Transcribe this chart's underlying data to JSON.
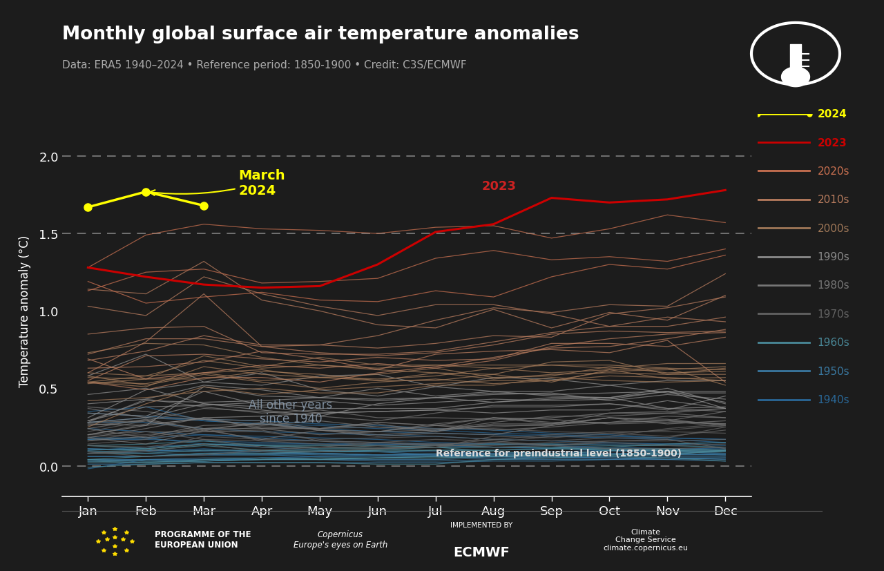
{
  "title": "Monthly global surface air temperature anomalies",
  "subtitle": "Data: ERA5 1940–2024 • Reference period: 1850-1900 • Credit: C3S/ECMWF",
  "ylabel": "Temperature anomaly (°C)",
  "bg_color": "#1c1c1c",
  "months": [
    1,
    2,
    3,
    4,
    5,
    6,
    7,
    8,
    9,
    10,
    11,
    12
  ],
  "month_labels": [
    "Jan",
    "Feb",
    "Mar",
    "Apr",
    "May",
    "Jun",
    "Jul",
    "Aug",
    "Sep",
    "Oct",
    "Nov",
    "Dec"
  ],
  "ylim": [
    -0.2,
    2.2
  ],
  "yticks": [
    0.0,
    0.5,
    1.0,
    1.5,
    2.0
  ],
  "line_2024": [
    1.67,
    1.77,
    1.68,
    null,
    null,
    null,
    null,
    null,
    null,
    null,
    null,
    null
  ],
  "line_2023": [
    1.28,
    1.22,
    1.17,
    1.15,
    1.16,
    1.3,
    1.51,
    1.56,
    1.73,
    1.7,
    1.72,
    1.78
  ],
  "decade_colors": {
    "2020s": "#c87050",
    "2010s": "#b87c5e",
    "2000s": "#a07858",
    "1990s": "#8a8a8a",
    "1980s": "#767676",
    "1970s": "#626262",
    "1960s": "#4a8898",
    "1950s": "#3a78a0",
    "1940s": "#2a6898"
  },
  "decade_line_data": {
    "2020s": [
      [
        1.13,
        1.25,
        1.27,
        1.18,
        1.19,
        1.21,
        1.34,
        1.39,
        1.33,
        1.35,
        1.32,
        1.4
      ],
      [
        1.19,
        1.05,
        1.09,
        1.12,
        1.07,
        1.06,
        1.13,
        1.09,
        1.22,
        1.3,
        1.27,
        1.36
      ],
      [
        1.28,
        1.49,
        1.56,
        1.53,
        1.52,
        1.5,
        1.54,
        1.55,
        1.47,
        1.53,
        1.62,
        1.57
      ]
    ],
    "2010s": [
      [
        0.6,
        0.8,
        1.11,
        0.77,
        0.78,
        0.84,
        0.94,
        1.02,
        0.99,
        1.04,
        1.03,
        1.24
      ],
      [
        1.14,
        1.11,
        1.32,
        1.07,
        1.0,
        0.91,
        0.89,
        1.01,
        0.89,
        0.99,
        0.94,
        1.1
      ],
      [
        1.03,
        0.97,
        1.22,
        1.11,
        1.03,
        0.97,
        1.04,
        1.04,
        0.98,
        0.9,
        0.96,
        0.93
      ],
      [
        0.85,
        0.89,
        0.9,
        0.73,
        0.72,
        0.72,
        0.74,
        0.8,
        0.86,
        0.9,
        0.9,
        0.96
      ],
      [
        0.72,
        0.82,
        0.82,
        0.77,
        0.73,
        0.71,
        0.73,
        0.78,
        0.85,
        0.87,
        0.86,
        0.87
      ],
      [
        0.69,
        0.56,
        0.6,
        0.65,
        0.63,
        0.66,
        0.63,
        0.68,
        0.77,
        0.82,
        0.85,
        0.86
      ],
      [
        0.68,
        0.74,
        0.84,
        0.78,
        0.78,
        0.76,
        0.79,
        0.84,
        0.83,
        0.98,
        1.02,
        1.09
      ],
      [
        0.55,
        0.71,
        0.72,
        0.69,
        0.67,
        0.7,
        0.68,
        0.69,
        0.79,
        0.79,
        0.77,
        0.83
      ],
      [
        0.54,
        0.49,
        0.57,
        0.57,
        0.54,
        0.6,
        0.64,
        0.7,
        0.76,
        0.77,
        0.82,
        0.88
      ],
      [
        0.63,
        0.64,
        0.67,
        0.74,
        0.69,
        0.62,
        0.72,
        0.74,
        0.75,
        0.73,
        0.81,
        0.54
      ]
    ],
    "2000s": [
      [
        0.25,
        0.4,
        0.51,
        0.46,
        0.49,
        0.51,
        0.53,
        0.55,
        0.55,
        0.61,
        0.62,
        0.64
      ],
      [
        0.42,
        0.44,
        0.48,
        0.5,
        0.47,
        0.47,
        0.52,
        0.52,
        0.57,
        0.55,
        0.54,
        0.55
      ],
      [
        0.58,
        0.52,
        0.59,
        0.54,
        0.5,
        0.54,
        0.56,
        0.53,
        0.55,
        0.58,
        0.57,
        0.55
      ],
      [
        0.54,
        0.58,
        0.6,
        0.62,
        0.57,
        0.59,
        0.63,
        0.57,
        0.58,
        0.64,
        0.6,
        0.61
      ],
      [
        0.73,
        0.79,
        0.78,
        0.7,
        0.65,
        0.62,
        0.6,
        0.56,
        0.59,
        0.6,
        0.59,
        0.63
      ],
      [
        0.54,
        0.51,
        0.64,
        0.59,
        0.57,
        0.55,
        0.55,
        0.59,
        0.54,
        0.62,
        0.63,
        0.62
      ],
      [
        0.57,
        0.56,
        0.56,
        0.61,
        0.59,
        0.55,
        0.6,
        0.59,
        0.67,
        0.68,
        0.59,
        0.59
      ],
      [
        0.54,
        0.53,
        0.6,
        0.55,
        0.57,
        0.56,
        0.58,
        0.63,
        0.6,
        0.62,
        0.56,
        0.57
      ],
      [
        0.6,
        0.58,
        0.68,
        0.63,
        0.65,
        0.63,
        0.65,
        0.65,
        0.65,
        0.63,
        0.66,
        0.66
      ],
      [
        0.53,
        0.56,
        0.71,
        0.64,
        0.7,
        0.65,
        0.65,
        0.63,
        0.65,
        0.65,
        0.63,
        0.52
      ]
    ],
    "1990s": [
      [
        0.29,
        0.38,
        0.39,
        0.41,
        0.37,
        0.37,
        0.37,
        0.41,
        0.43,
        0.44,
        0.5,
        0.4
      ],
      [
        0.4,
        0.43,
        0.52,
        0.49,
        0.44,
        0.5,
        0.45,
        0.48,
        0.45,
        0.44,
        0.37,
        0.38
      ],
      [
        0.46,
        0.5,
        0.4,
        0.36,
        0.32,
        0.4,
        0.44,
        0.41,
        0.44,
        0.44,
        0.48,
        0.48
      ],
      [
        0.29,
        0.42,
        0.41,
        0.42,
        0.44,
        0.43,
        0.44,
        0.46,
        0.47,
        0.42,
        0.46,
        0.43
      ],
      [
        0.34,
        0.32,
        0.48,
        0.39,
        0.42,
        0.39,
        0.41,
        0.43,
        0.42,
        0.43,
        0.48,
        0.41
      ],
      [
        0.31,
        0.49,
        0.54,
        0.52,
        0.58,
        0.59,
        0.51,
        0.57,
        0.56,
        0.52,
        0.55,
        0.55
      ],
      [
        0.58,
        0.72,
        0.54,
        0.6,
        0.49,
        0.45,
        0.51,
        0.48,
        0.48,
        0.52,
        0.47,
        0.47
      ],
      [
        0.28,
        0.31,
        0.4,
        0.38,
        0.34,
        0.35,
        0.36,
        0.34,
        0.36,
        0.36,
        0.42,
        0.37
      ],
      [
        0.2,
        0.26,
        0.31,
        0.32,
        0.34,
        0.35,
        0.36,
        0.38,
        0.38,
        0.4,
        0.36,
        0.45
      ],
      [
        0.27,
        0.26,
        0.51,
        0.45,
        0.44,
        0.42,
        0.44,
        0.47,
        0.46,
        0.47,
        0.48,
        0.37
      ]
    ],
    "1980s": [
      [
        0.24,
        0.3,
        0.23,
        0.28,
        0.23,
        0.22,
        0.26,
        0.23,
        0.25,
        0.28,
        0.29,
        0.35
      ],
      [
        0.38,
        0.35,
        0.3,
        0.26,
        0.29,
        0.25,
        0.23,
        0.28,
        0.32,
        0.32,
        0.34,
        0.31
      ],
      [
        0.16,
        0.19,
        0.26,
        0.27,
        0.23,
        0.22,
        0.27,
        0.31,
        0.28,
        0.28,
        0.32,
        0.31
      ],
      [
        0.26,
        0.29,
        0.37,
        0.35,
        0.32,
        0.29,
        0.34,
        0.39,
        0.39,
        0.4,
        0.37,
        0.35
      ],
      [
        0.28,
        0.43,
        0.38,
        0.34,
        0.36,
        0.31,
        0.31,
        0.3,
        0.31,
        0.34,
        0.35,
        0.37
      ],
      [
        0.18,
        0.14,
        0.23,
        0.17,
        0.23,
        0.2,
        0.22,
        0.27,
        0.27,
        0.31,
        0.3,
        0.26
      ],
      [
        0.28,
        0.29,
        0.24,
        0.27,
        0.23,
        0.19,
        0.21,
        0.2,
        0.26,
        0.31,
        0.27,
        0.29
      ],
      [
        0.24,
        0.18,
        0.24,
        0.24,
        0.2,
        0.22,
        0.23,
        0.26,
        0.26,
        0.31,
        0.29,
        0.27
      ],
      [
        0.37,
        0.31,
        0.3,
        0.29,
        0.24,
        0.27,
        0.22,
        0.31,
        0.27,
        0.34,
        0.34,
        0.37
      ],
      [
        0.18,
        0.24,
        0.31,
        0.24,
        0.24,
        0.28,
        0.26,
        0.31,
        0.3,
        0.27,
        0.28,
        0.27
      ]
    ],
    "1970s": [
      [
        0.09,
        0.06,
        0.07,
        0.1,
        0.12,
        0.11,
        0.13,
        0.13,
        0.15,
        0.16,
        0.16,
        0.17
      ],
      [
        0.08,
        0.1,
        0.19,
        0.17,
        0.16,
        0.15,
        0.17,
        0.16,
        0.13,
        0.16,
        0.17,
        0.11
      ],
      [
        0.08,
        0.09,
        0.14,
        0.09,
        0.09,
        0.11,
        0.12,
        0.15,
        0.13,
        0.11,
        0.11,
        0.12
      ],
      [
        0.16,
        0.22,
        0.17,
        0.16,
        0.16,
        0.13,
        0.14,
        0.12,
        0.13,
        0.15,
        0.13,
        0.14
      ],
      [
        0.14,
        0.17,
        0.22,
        0.23,
        0.16,
        0.15,
        0.13,
        0.17,
        0.16,
        0.18,
        0.18,
        0.25
      ],
      [
        0.19,
        0.2,
        0.24,
        0.16,
        0.14,
        0.12,
        0.12,
        0.19,
        0.18,
        0.21,
        0.23,
        0.26
      ],
      [
        0.22,
        0.29,
        0.22,
        0.22,
        0.17,
        0.18,
        0.19,
        0.17,
        0.2,
        0.22,
        0.22,
        0.21
      ],
      [
        0.13,
        0.12,
        0.17,
        0.12,
        0.12,
        0.15,
        0.14,
        0.15,
        0.19,
        0.19,
        0.24,
        0.27
      ],
      [
        0.2,
        0.22,
        0.22,
        0.25,
        0.24,
        0.25,
        0.24,
        0.24,
        0.22,
        0.21,
        0.19,
        0.23
      ],
      [
        0.2,
        0.27,
        0.3,
        0.25,
        0.24,
        0.28,
        0.26,
        0.25,
        0.27,
        0.28,
        0.29,
        0.25
      ]
    ],
    "1960s": [
      [
        0.04,
        0.03,
        0.03,
        0.04,
        0.04,
        0.05,
        0.05,
        0.06,
        0.07,
        0.07,
        0.08,
        0.09
      ],
      [
        -0.01,
        0.01,
        0.02,
        0.02,
        0.02,
        0.01,
        0.01,
        0.04,
        0.05,
        0.07,
        0.07,
        0.1
      ],
      [
        0.04,
        0.06,
        0.08,
        0.08,
        0.09,
        0.09,
        0.1,
        0.1,
        0.11,
        0.1,
        0.1,
        0.09
      ],
      [
        0.1,
        0.11,
        0.14,
        0.13,
        0.11,
        0.11,
        0.12,
        0.09,
        0.08,
        0.06,
        0.05,
        0.03
      ],
      [
        0.03,
        0.02,
        0.04,
        0.05,
        0.04,
        0.05,
        0.06,
        0.07,
        0.07,
        0.1,
        0.11,
        0.1
      ],
      [
        0.09,
        0.1,
        0.13,
        0.1,
        0.1,
        0.1,
        0.12,
        0.12,
        0.12,
        0.12,
        0.14,
        0.15
      ],
      [
        0.13,
        0.14,
        0.16,
        0.13,
        0.12,
        0.12,
        0.13,
        0.14,
        0.14,
        0.13,
        0.13,
        0.12
      ],
      [
        0.13,
        0.11,
        0.14,
        0.13,
        0.13,
        0.13,
        0.12,
        0.12,
        0.12,
        0.1,
        0.1,
        0.09
      ],
      [
        0.02,
        0.02,
        0.03,
        0.04,
        0.05,
        0.05,
        0.05,
        0.06,
        0.06,
        0.07,
        0.09,
        0.1
      ],
      [
        0.08,
        0.08,
        0.1,
        0.1,
        0.09,
        0.1,
        0.1,
        0.1,
        0.11,
        0.11,
        0.11,
        0.1
      ]
    ],
    "1950s": [
      [
        0.03,
        0.04,
        0.04,
        0.04,
        0.04,
        0.04,
        0.04,
        0.05,
        0.05,
        0.06,
        0.06,
        0.06
      ],
      [
        0.11,
        0.1,
        0.1,
        0.09,
        0.08,
        0.07,
        0.07,
        0.07,
        0.07,
        0.08,
        0.08,
        0.07
      ],
      [
        0.11,
        0.1,
        0.09,
        0.08,
        0.08,
        0.07,
        0.07,
        0.06,
        0.06,
        0.05,
        0.05,
        0.04
      ],
      [
        0.17,
        0.18,
        0.14,
        0.12,
        0.1,
        0.09,
        0.07,
        0.06,
        0.05,
        0.05,
        0.05,
        0.05
      ],
      [
        0.01,
        0.01,
        0.02,
        0.02,
        0.02,
        0.02,
        0.02,
        0.03,
        0.03,
        0.04,
        0.04,
        0.05
      ],
      [
        0.04,
        0.04,
        0.05,
        0.05,
        0.05,
        0.05,
        0.06,
        0.06,
        0.07,
        0.07,
        0.07,
        0.08
      ],
      [
        0.06,
        0.06,
        0.08,
        0.08,
        0.07,
        0.07,
        0.07,
        0.07,
        0.07,
        0.07,
        0.07,
        0.07
      ],
      [
        0.06,
        0.06,
        0.07,
        0.07,
        0.08,
        0.07,
        0.08,
        0.08,
        0.08,
        0.09,
        0.09,
        0.09
      ],
      [
        0.09,
        0.08,
        0.07,
        0.07,
        0.06,
        0.06,
        0.06,
        0.05,
        0.05,
        0.05,
        0.04,
        0.03
      ],
      [
        0.03,
        0.03,
        0.03,
        0.04,
        0.04,
        0.03,
        0.03,
        0.04,
        0.04,
        0.04,
        0.05,
        0.05
      ]
    ],
    "1940s": [
      [
        0.24,
        0.22,
        0.2,
        0.18,
        0.16,
        0.15,
        0.14,
        0.12,
        0.11,
        0.1,
        0.09,
        0.08
      ],
      [
        0.17,
        0.17,
        0.16,
        0.15,
        0.14,
        0.14,
        0.13,
        0.12,
        0.12,
        0.11,
        0.1,
        0.1
      ],
      [
        0.35,
        0.38,
        0.29,
        0.27,
        0.24,
        0.22,
        0.21,
        0.2,
        0.19,
        0.18,
        0.17,
        0.15
      ],
      [
        0.28,
        0.28,
        0.24,
        0.22,
        0.21,
        0.2,
        0.19,
        0.17,
        0.16,
        0.15,
        0.14,
        0.13
      ],
      [
        0.28,
        0.31,
        0.29,
        0.27,
        0.26,
        0.24,
        0.23,
        0.21,
        0.2,
        0.19,
        0.18,
        0.17
      ],
      [
        0.34,
        0.32,
        0.3,
        0.29,
        0.27,
        0.26,
        0.24,
        0.23,
        0.21,
        0.2,
        0.18,
        0.17
      ],
      [
        0.18,
        0.18,
        0.2,
        0.19,
        0.18,
        0.17,
        0.15,
        0.14,
        0.13,
        0.12,
        0.11,
        0.11
      ],
      [
        0.1,
        0.12,
        0.14,
        0.14,
        0.14,
        0.14,
        0.14,
        0.14,
        0.14,
        0.14,
        0.14,
        0.15
      ],
      [
        -0.02,
        0.04,
        0.03,
        0.05,
        0.06,
        0.07,
        0.07,
        0.08,
        0.09,
        0.1,
        0.1,
        0.12
      ],
      [
        0.08,
        0.09,
        0.11,
        0.09,
        0.09,
        0.09,
        0.09,
        0.08,
        0.08,
        0.08,
        0.08,
        0.07
      ]
    ]
  },
  "legend_items": [
    "2024",
    "2023",
    "2020s",
    "2010s",
    "2000s",
    "1990s",
    "1980s",
    "1970s",
    "1960s",
    "1950s",
    "1940s"
  ],
  "legend_colors": [
    "#ffff00",
    "#cc0000",
    "#c87050",
    "#b87c5e",
    "#a07858",
    "#8a8a8a",
    "#767676",
    "#626262",
    "#4a8898",
    "#3a78a0",
    "#2a6898"
  ],
  "dashed_line_color": "#888888",
  "annotation_march2024_color": "#ffff00",
  "annotation_2023_color": "#cc2222",
  "annotation_other_color": "#8899aa",
  "annotation_preindustrial_color": "#dddddd"
}
